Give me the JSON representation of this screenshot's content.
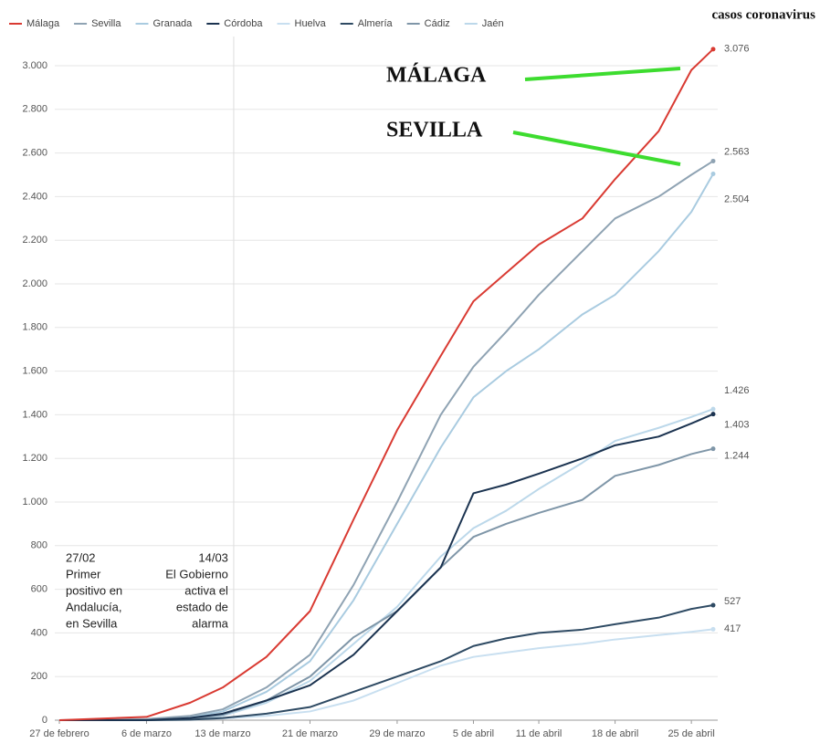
{
  "chart_data": {
    "type": "line",
    "title": "casos coronavirus",
    "x": [
      "02-27",
      "03-06",
      "03-10",
      "03-13",
      "03-17",
      "03-21",
      "03-25",
      "03-29",
      "04-02",
      "04-05",
      "04-08",
      "04-11",
      "04-15",
      "04-18",
      "04-22",
      "04-25",
      "04-27"
    ],
    "xlim": [
      "02-27",
      "04-27"
    ],
    "xticks": [
      {
        "value": "02-27",
        "label": "27 de febrero"
      },
      {
        "value": "03-06",
        "label": "6 de marzo"
      },
      {
        "value": "03-13",
        "label": "13 de marzo"
      },
      {
        "value": "03-21",
        "label": "21 de marzo"
      },
      {
        "value": "03-29",
        "label": "29 de marzo"
      },
      {
        "value": "04-05",
        "label": "5 de abril"
      },
      {
        "value": "04-11",
        "label": "11 de abril"
      },
      {
        "value": "04-18",
        "label": "18 de abril"
      },
      {
        "value": "04-25",
        "label": "25 de abril"
      }
    ],
    "ylim": [
      0,
      3000
    ],
    "yticks": [
      0,
      200,
      400,
      600,
      800,
      {
        "value": 1000,
        "label": "1.000"
      },
      {
        "value": 1200,
        "label": "1.200"
      },
      {
        "value": 1400,
        "label": "1.400"
      },
      {
        "value": 1600,
        "label": "1.600"
      },
      {
        "value": 1800,
        "label": "1.800"
      },
      {
        "value": 2000,
        "label": "2.000"
      },
      {
        "value": 2200,
        "label": "2.200"
      },
      {
        "value": 2400,
        "label": "2.400"
      },
      {
        "value": 2600,
        "label": "2.600"
      },
      {
        "value": 2800,
        "label": "2.800"
      },
      {
        "value": 3000,
        "label": "3.000"
      }
    ],
    "grid": true,
    "legend": "top",
    "series": [
      {
        "name": "Málaga",
        "color": "#d93a32",
        "values": [
          0,
          15,
          80,
          150,
          290,
          500,
          920,
          1330,
          1670,
          1920,
          2050,
          2180,
          2300,
          2480,
          2700,
          2980,
          3076
        ],
        "value_labels": [
          null,
          null,
          null,
          null,
          null,
          null,
          null,
          null,
          null,
          null,
          null,
          null,
          null,
          null,
          null,
          null,
          "3.076"
        ]
      },
      {
        "name": "Sevilla",
        "color": "#8fa3b3",
        "values": [
          0,
          5,
          20,
          50,
          150,
          300,
          620,
          1000,
          1400,
          1620,
          1780,
          1950,
          2150,
          2300,
          2400,
          2500,
          2563
        ],
        "value_labels": [
          null,
          null,
          null,
          null,
          null,
          null,
          null,
          null,
          null,
          null,
          null,
          null,
          null,
          null,
          null,
          null,
          "2.563"
        ]
      },
      {
        "name": "Granada",
        "color": "#a9cbe0",
        "values": [
          0,
          5,
          15,
          40,
          130,
          270,
          550,
          900,
          1250,
          1480,
          1600,
          1700,
          1860,
          1950,
          2150,
          2330,
          2504
        ],
        "value_labels": [
          null,
          null,
          null,
          null,
          null,
          null,
          null,
          null,
          null,
          null,
          null,
          null,
          null,
          null,
          null,
          null,
          "2.504"
        ]
      },
      {
        "name": "Córdoba",
        "color": "#1b3350",
        "values": [
          0,
          0,
          10,
          30,
          90,
          160,
          300,
          500,
          700,
          1040,
          1080,
          1130,
          1200,
          1260,
          1300,
          1360,
          1403
        ],
        "value_labels": [
          null,
          null,
          null,
          null,
          null,
          null,
          null,
          null,
          null,
          null,
          null,
          null,
          null,
          null,
          null,
          null,
          "1.403"
        ]
      },
      {
        "name": "Huelva",
        "color": "#c8dff0",
        "values": [
          0,
          0,
          2,
          8,
          20,
          40,
          90,
          170,
          250,
          290,
          310,
          330,
          350,
          370,
          390,
          405,
          417
        ],
        "value_labels": [
          null,
          null,
          null,
          null,
          null,
          null,
          null,
          null,
          null,
          null,
          null,
          null,
          null,
          null,
          null,
          null,
          "417"
        ]
      },
      {
        "name": "Almería",
        "color": "#2e4a63",
        "values": [
          0,
          0,
          2,
          10,
          30,
          60,
          130,
          200,
          270,
          340,
          375,
          400,
          415,
          440,
          470,
          510,
          527
        ],
        "value_labels": [
          null,
          null,
          null,
          null,
          null,
          null,
          null,
          null,
          null,
          null,
          null,
          null,
          null,
          null,
          null,
          null,
          "527"
        ]
      },
      {
        "name": "Cádiz",
        "color": "#7f96a8",
        "values": [
          0,
          0,
          5,
          25,
          90,
          200,
          380,
          500,
          700,
          840,
          900,
          950,
          1010,
          1120,
          1170,
          1220,
          1244
        ],
        "value_labels": [
          null,
          null,
          null,
          null,
          null,
          null,
          null,
          null,
          null,
          null,
          null,
          null,
          null,
          null,
          null,
          null,
          "1.244"
        ]
      },
      {
        "name": "Jaén",
        "color": "#bcd8ea",
        "values": [
          0,
          0,
          5,
          20,
          80,
          180,
          350,
          520,
          750,
          880,
          960,
          1060,
          1180,
          1280,
          1340,
          1390,
          1426
        ],
        "value_labels": [
          null,
          null,
          null,
          null,
          null,
          null,
          null,
          null,
          null,
          null,
          null,
          null,
          null,
          null,
          null,
          null,
          "1.426"
        ]
      }
    ],
    "annotations": [
      {
        "lines": [
          "27/02",
          "Primer",
          "positivo en",
          "Andalucía,",
          "en Sevilla"
        ]
      },
      {
        "x": "03-14",
        "lines": [
          "14/03",
          "El Gobierno",
          "activa el",
          "estado de",
          "alarma"
        ]
      }
    ],
    "callouts": [
      "MÁLAGA",
      "SEVILLA"
    ]
  }
}
